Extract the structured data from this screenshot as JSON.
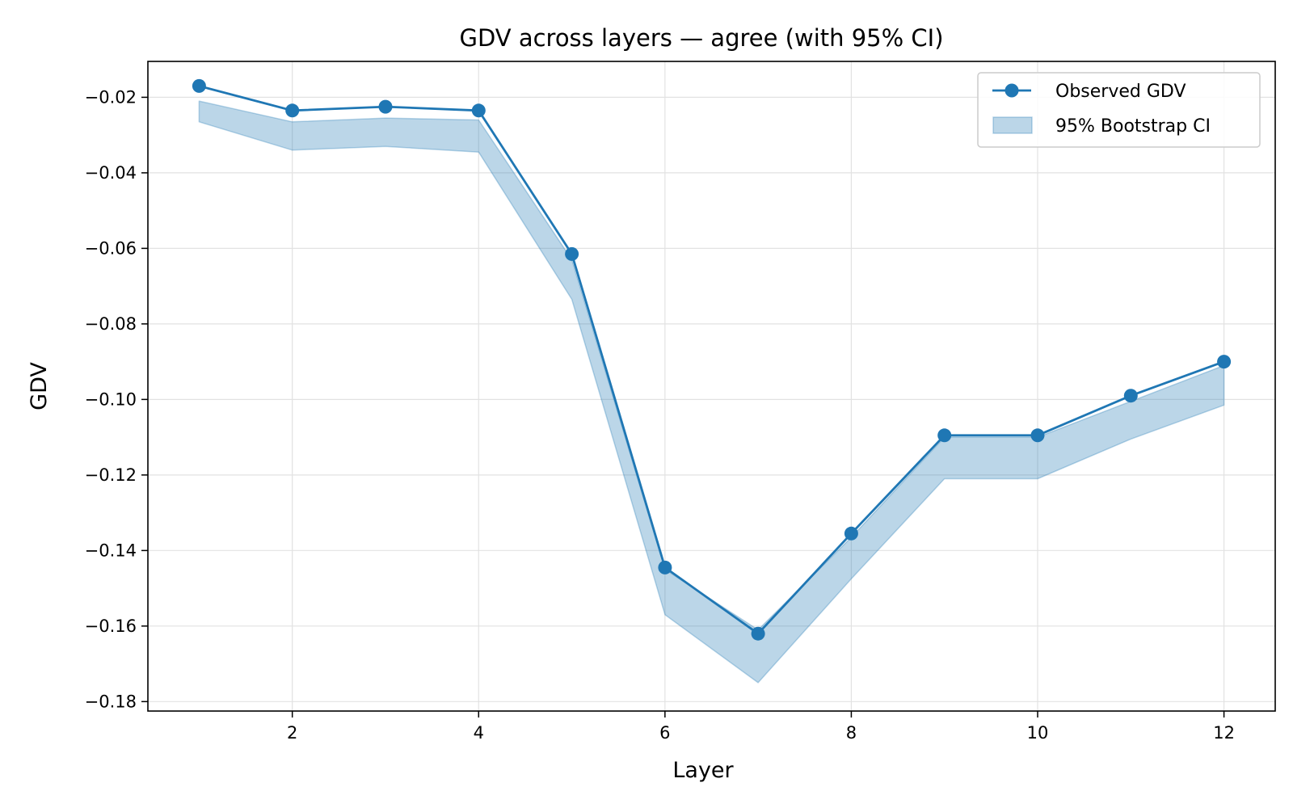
{
  "chart_data": {
    "type": "line",
    "title": "GDV across layers — agree (with 95% CI)",
    "xlabel": "Layer",
    "ylabel": "GDV",
    "xlim": [
      0.45,
      12.55
    ],
    "ylim": [
      -0.1825,
      -0.0105
    ],
    "xticks": [
      2,
      4,
      6,
      8,
      10,
      12
    ],
    "xtick_labels": [
      "2",
      "4",
      "6",
      "8",
      "10",
      "12"
    ],
    "yticks": [
      -0.02,
      -0.04,
      -0.06,
      -0.08,
      -0.1,
      -0.12,
      -0.14,
      -0.16,
      -0.18
    ],
    "ytick_labels": [
      "−0.02",
      "−0.04",
      "−0.06",
      "−0.08",
      "−0.10",
      "−0.12",
      "−0.14",
      "−0.16",
      "−0.18"
    ],
    "grid": true,
    "legend_position": "top-right",
    "x": [
      1,
      2,
      3,
      4,
      5,
      6,
      7,
      8,
      9,
      10,
      11,
      12
    ],
    "series": [
      {
        "name": "Observed GDV",
        "kind": "line-marker",
        "color": "#1f77b4",
        "values": [
          -0.017,
          -0.0235,
          -0.0225,
          -0.0235,
          -0.0615,
          -0.1445,
          -0.162,
          -0.1355,
          -0.1095,
          -0.1095,
          -0.099,
          -0.09
        ]
      },
      {
        "name": "95% Bootstrap CI",
        "kind": "band",
        "color": "#1f77b4",
        "lower": [
          -0.0265,
          -0.034,
          -0.033,
          -0.0345,
          -0.0735,
          -0.157,
          -0.175,
          -0.1475,
          -0.121,
          -0.121,
          -0.1105,
          -0.1015
        ],
        "upper": [
          -0.021,
          -0.0265,
          -0.0255,
          -0.026,
          -0.063,
          -0.145,
          -0.161,
          -0.1365,
          -0.11,
          -0.11,
          -0.1005,
          -0.091
        ]
      }
    ]
  }
}
